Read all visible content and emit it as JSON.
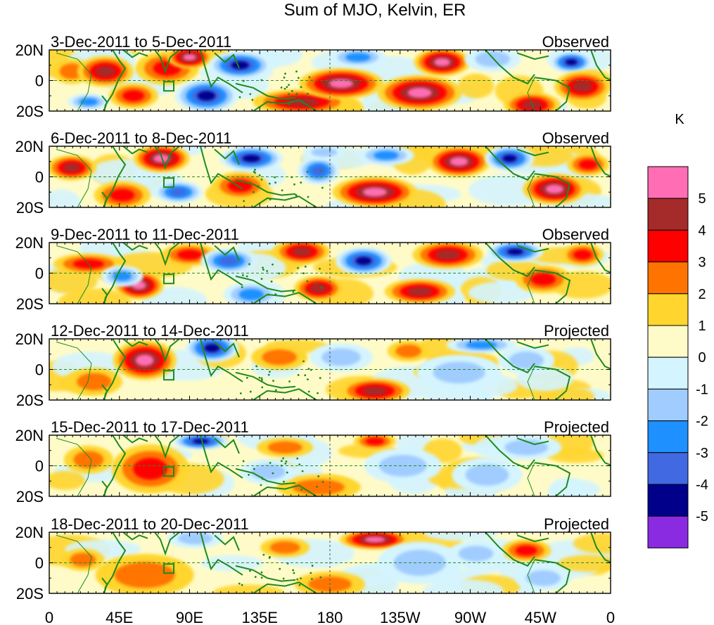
{
  "chart_data": {
    "type": "heatmap",
    "title": "Sum of MJO, Kelvin, ER",
    "units": "K",
    "x_ticks": [
      "0",
      "45E",
      "90E",
      "135E",
      "180",
      "135W",
      "90W",
      "45W",
      "0"
    ],
    "y_ticks": [
      "20N",
      "0",
      "20S"
    ],
    "colorbar": {
      "labels": [
        "5",
        "4",
        "3",
        "2",
        "1",
        "0",
        "-1",
        "-2",
        "-3",
        "-4",
        "-5"
      ],
      "colors": [
        "#ff6eb4",
        "#a52a2a",
        "#ff0000",
        "#ff7400",
        "#ffd52e",
        "#fffbc8",
        "#d4f4ff",
        "#a0ccff",
        "#1e90ff",
        "#4169e1",
        "#00008b",
        "#8a2be2"
      ]
    },
    "panels": [
      {
        "period": "3-Dec-2011 to 5-Dec-2011",
        "status": "Observed"
      },
      {
        "period": "6-Dec-2011 to 8-Dec-2011",
        "status": "Observed"
      },
      {
        "period": "9-Dec-2011 to 11-Dec-2011",
        "status": "Observed"
      },
      {
        "period": "12-Dec-2011 to 14-Dec-2011",
        "status": "Projected"
      },
      {
        "period": "15-Dec-2011 to 17-Dec-2011",
        "status": "Projected"
      },
      {
        "period": "18-Dec-2011 to 20-Dec-2011",
        "status": "Projected"
      }
    ]
  }
}
